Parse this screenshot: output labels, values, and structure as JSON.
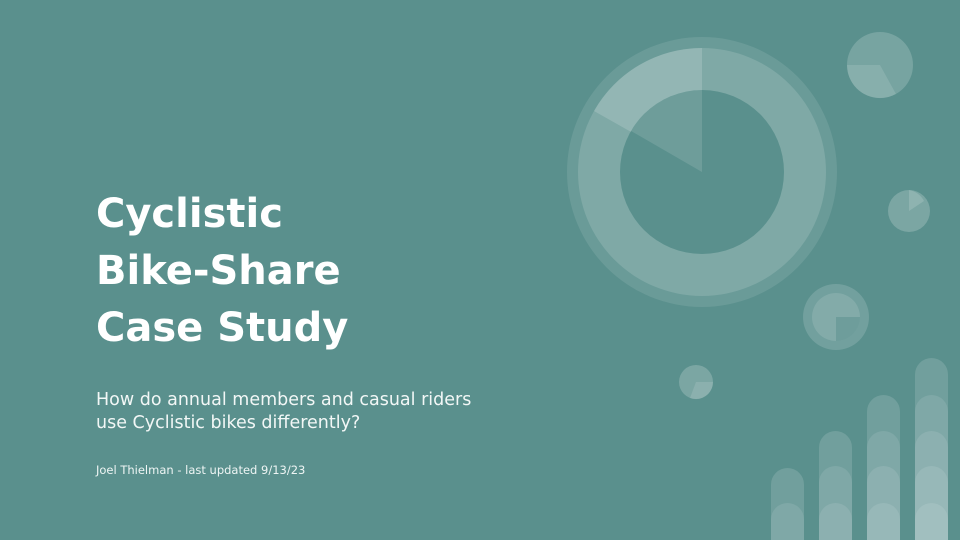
{
  "slide": {
    "title": "Cyclistic\nBike-Share\nCase Study",
    "subtitle": "How do annual members and casual riders\nuse Cyclistic bikes differently?",
    "byline": "Joel Thielman - last updated 9/13/23"
  },
  "colors": {
    "background": "#5a908d",
    "text": "#ffffff",
    "decor_light": "#e0eeec"
  },
  "decoration": {
    "description_icons": [
      "donut-chart-graphic",
      "pie-chart-graphic",
      "bar-chart-graphic"
    ]
  }
}
